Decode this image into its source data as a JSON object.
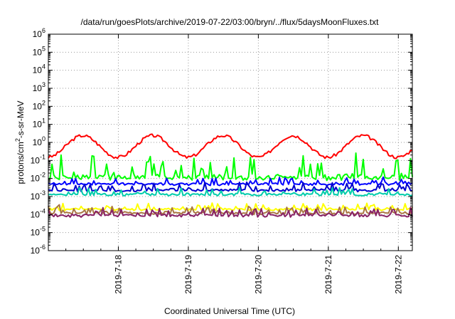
{
  "chart_data": {
    "type": "line",
    "title": "/data/run/goesPlots/archive/2019-07-22/03:00/bryn/../flux/5daysMoonFluxes.txt",
    "xlabel": "Coordinated Universal Time (UTC)",
    "ylabel": "protons/cm²-s-sr-MeV",
    "ylabel_main": "protons/cm",
    "ylabel_sup": "2",
    "ylabel_rest": "-s-sr-MeV",
    "log_y": true,
    "grid": true,
    "xlim": [
      0,
      5.2
    ],
    "ylim": [
      1e-06,
      1000000.0
    ],
    "y_tick_exponents": [
      -6,
      -5,
      -4,
      -3,
      -2,
      -1,
      0,
      1,
      2,
      3,
      4,
      5,
      6
    ],
    "y_tick_base": "10",
    "x_ticks": [
      {
        "x": 1,
        "label": "2019-7-18"
      },
      {
        "x": 2,
        "label": "2019-7-19"
      },
      {
        "x": 3,
        "label": "2019-7-20"
      },
      {
        "x": 4,
        "label": "2019-7-21"
      },
      {
        "x": 5,
        "label": "2019-7-22"
      }
    ],
    "series": [
      {
        "color": "#ff0000",
        "shape": "diurnal",
        "base": 0.15,
        "amp": 1.2,
        "noise": 0.18,
        "seed": 3
      },
      {
        "color": "#00ff00",
        "shape": "spiky",
        "base": 0.009,
        "amp": 0.9,
        "noise": 0.45,
        "seed": 7
      },
      {
        "color": "#0000ff",
        "shape": "spiky",
        "base": 0.0045,
        "amp": 0.25,
        "noise": 0.3,
        "seed": 11
      },
      {
        "color": "#0000cc",
        "shape": "spiky",
        "base": 0.002,
        "amp": 0.3,
        "noise": 0.35,
        "seed": 13
      },
      {
        "color": "#00ccaa",
        "shape": "spiky",
        "base": 0.0012,
        "amp": 0.25,
        "noise": 0.35,
        "seed": 17
      },
      {
        "color": "#ffff00",
        "shape": "spiky",
        "base": 0.00018,
        "amp": 0.25,
        "noise": 0.3,
        "seed": 19
      },
      {
        "color": "#aa7744",
        "shape": "spiky",
        "base": 0.00011,
        "amp": 0.3,
        "noise": 0.35,
        "seed": 23
      },
      {
        "color": "#882266",
        "shape": "spiky",
        "base": 8e-05,
        "amp": 0.3,
        "noise": 0.35,
        "seed": 29
      }
    ]
  }
}
